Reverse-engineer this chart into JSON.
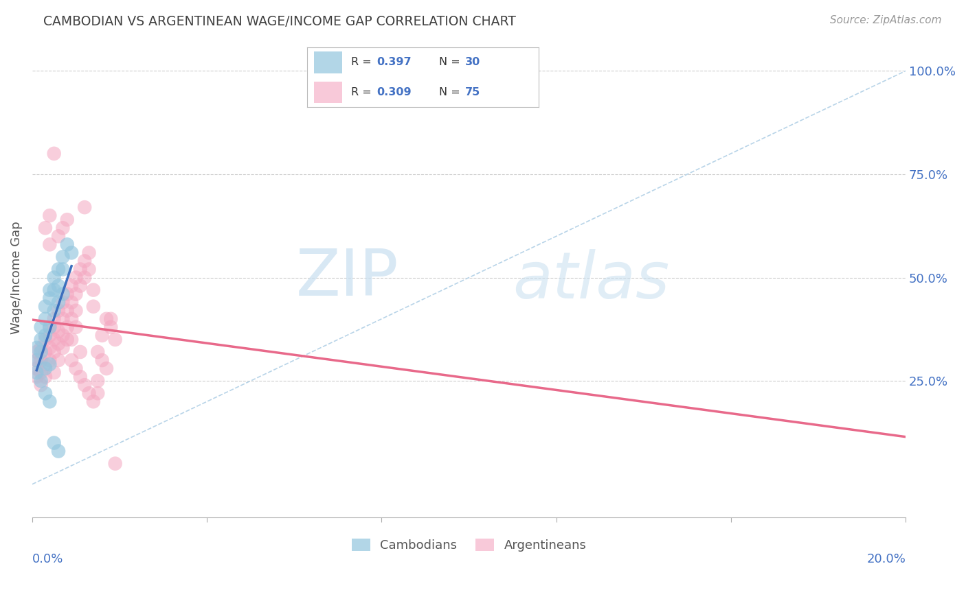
{
  "title": "CAMBODIAN VS ARGENTINEAN WAGE/INCOME GAP CORRELATION CHART",
  "source": "Source: ZipAtlas.com",
  "ylabel": "Wage/Income Gap",
  "cambodian_color": "#92c5de",
  "argentinean_color": "#f4a6c0",
  "diagonal_color": "#b8d4e8",
  "regression_cambodian_color": "#3b6fbd",
  "regression_argentinean_color": "#e8698a",
  "background_color": "#ffffff",
  "grid_color": "#cccccc",
  "axis_color": "#4472C4",
  "title_color": "#404040",
  "n_label_color": "#4472C4",
  "r_label_color": "#333333",
  "watermark_color": "#d0e8f5",
  "xlim": [
    0.0,
    0.2
  ],
  "ylim": [
    -0.08,
    1.08
  ],
  "ytick_positions": [
    0.25,
    0.5,
    0.75,
    1.0
  ],
  "ytick_labels": [
    "25.0%",
    "50.0%",
    "75.0%",
    "100.0%"
  ],
  "xtick_label_left": "0.0%",
  "xtick_label_right": "20.0%",
  "cambodian_R": "0.397",
  "cambodian_N": "30",
  "argentinean_R": "0.309",
  "argentinean_N": "75",
  "cambodian_points": [
    [
      0.005,
      0.5
    ],
    [
      0.004,
      0.45
    ],
    [
      0.006,
      0.52
    ],
    [
      0.005,
      0.47
    ],
    [
      0.007,
      0.55
    ],
    [
      0.006,
      0.48
    ],
    [
      0.008,
      0.58
    ],
    [
      0.007,
      0.52
    ],
    [
      0.009,
      0.56
    ],
    [
      0.003,
      0.43
    ],
    [
      0.004,
      0.47
    ],
    [
      0.003,
      0.4
    ],
    [
      0.002,
      0.38
    ],
    [
      0.002,
      0.35
    ],
    [
      0.001,
      0.33
    ],
    [
      0.001,
      0.3
    ],
    [
      0.002,
      0.32
    ],
    [
      0.003,
      0.36
    ],
    [
      0.004,
      0.38
    ],
    [
      0.005,
      0.42
    ],
    [
      0.006,
      0.44
    ],
    [
      0.007,
      0.46
    ],
    [
      0.003,
      0.28
    ],
    [
      0.004,
      0.29
    ],
    [
      0.002,
      0.25
    ],
    [
      0.001,
      0.27
    ],
    [
      0.003,
      0.22
    ],
    [
      0.004,
      0.2
    ],
    [
      0.005,
      0.1
    ],
    [
      0.006,
      0.08
    ]
  ],
  "argentinean_points": [
    [
      0.001,
      0.28
    ],
    [
      0.001,
      0.3
    ],
    [
      0.001,
      0.32
    ],
    [
      0.002,
      0.3
    ],
    [
      0.002,
      0.33
    ],
    [
      0.002,
      0.27
    ],
    [
      0.003,
      0.32
    ],
    [
      0.003,
      0.35
    ],
    [
      0.003,
      0.29
    ],
    [
      0.004,
      0.36
    ],
    [
      0.004,
      0.33
    ],
    [
      0.004,
      0.38
    ],
    [
      0.004,
      0.3
    ],
    [
      0.005,
      0.38
    ],
    [
      0.005,
      0.35
    ],
    [
      0.005,
      0.32
    ],
    [
      0.005,
      0.4
    ],
    [
      0.006,
      0.42
    ],
    [
      0.006,
      0.37
    ],
    [
      0.006,
      0.34
    ],
    [
      0.006,
      0.3
    ],
    [
      0.007,
      0.44
    ],
    [
      0.007,
      0.4
    ],
    [
      0.007,
      0.36
    ],
    [
      0.007,
      0.33
    ],
    [
      0.008,
      0.46
    ],
    [
      0.008,
      0.42
    ],
    [
      0.008,
      0.38
    ],
    [
      0.008,
      0.35
    ],
    [
      0.009,
      0.48
    ],
    [
      0.009,
      0.44
    ],
    [
      0.009,
      0.4
    ],
    [
      0.01,
      0.5
    ],
    [
      0.01,
      0.46
    ],
    [
      0.01,
      0.42
    ],
    [
      0.01,
      0.38
    ],
    [
      0.011,
      0.52
    ],
    [
      0.011,
      0.48
    ],
    [
      0.012,
      0.54
    ],
    [
      0.012,
      0.5
    ],
    [
      0.013,
      0.56
    ],
    [
      0.013,
      0.52
    ],
    [
      0.014,
      0.47
    ],
    [
      0.014,
      0.43
    ],
    [
      0.015,
      0.25
    ],
    [
      0.015,
      0.22
    ],
    [
      0.016,
      0.36
    ],
    [
      0.017,
      0.4
    ],
    [
      0.018,
      0.38
    ],
    [
      0.019,
      0.05
    ],
    [
      0.003,
      0.62
    ],
    [
      0.004,
      0.65
    ],
    [
      0.004,
      0.58
    ],
    [
      0.005,
      0.8
    ],
    [
      0.006,
      0.6
    ],
    [
      0.007,
      0.62
    ],
    [
      0.008,
      0.64
    ],
    [
      0.009,
      0.3
    ],
    [
      0.01,
      0.28
    ],
    [
      0.011,
      0.26
    ],
    [
      0.012,
      0.24
    ],
    [
      0.013,
      0.22
    ],
    [
      0.014,
      0.2
    ],
    [
      0.015,
      0.32
    ],
    [
      0.016,
      0.3
    ],
    [
      0.017,
      0.28
    ],
    [
      0.018,
      0.4
    ],
    [
      0.019,
      0.35
    ],
    [
      0.012,
      0.67
    ],
    [
      0.001,
      0.26
    ],
    [
      0.002,
      0.24
    ],
    [
      0.003,
      0.26
    ],
    [
      0.005,
      0.27
    ],
    [
      0.009,
      0.35
    ],
    [
      0.011,
      0.32
    ]
  ]
}
